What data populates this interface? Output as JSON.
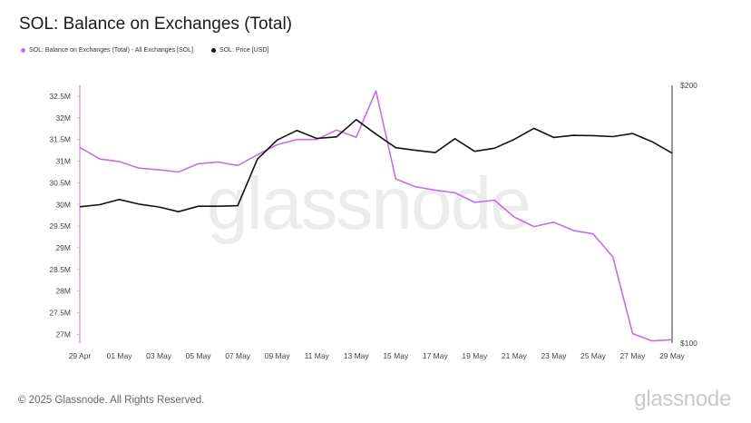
{
  "header": {
    "title": "SOL: Balance on Exchanges (Total)"
  },
  "footer": {
    "copyright": "© 2025 Glassnode. All Rights Reserved.",
    "brand": "glassnode",
    "watermark": "glassnode"
  },
  "colors": {
    "balance": "#c46fe9",
    "price": "#111111",
    "grid_axis": "#e0e0e0"
  },
  "chart_data": {
    "type": "line",
    "title": "SOL: Balance on Exchanges (Total)",
    "x_tick_labels": [
      "29 Apr",
      "01 May",
      "03 May",
      "05 May",
      "07 May",
      "09 May",
      "11 May",
      "13 May",
      "15 May",
      "17 May",
      "19 May",
      "21 May",
      "23 May",
      "25 May",
      "27 May",
      "29 May"
    ],
    "x": [
      "29 Apr",
      "30 Apr",
      "01 May",
      "02 May",
      "03 May",
      "04 May",
      "05 May",
      "06 May",
      "07 May",
      "08 May",
      "09 May",
      "10 May",
      "11 May",
      "12 May",
      "13 May",
      "14 May",
      "15 May",
      "16 May",
      "17 May",
      "18 May",
      "19 May",
      "20 May",
      "21 May",
      "22 May",
      "23 May",
      "24 May",
      "25 May",
      "26 May",
      "27 May",
      "28 May",
      "29 May"
    ],
    "y_left": {
      "ticks": [
        "27M",
        "27.5M",
        "28M",
        "28.5M",
        "29M",
        "29.5M",
        "30M",
        "30.5M",
        "31M",
        "31.5M",
        "32M",
        "32.5M"
      ],
      "range": [
        26.8,
        32.75
      ]
    },
    "y_right": {
      "ticks": [
        "$100",
        "$200"
      ],
      "range": [
        100,
        200
      ]
    },
    "grid": false,
    "legend_position": "top-left",
    "series": [
      {
        "name": "SOL: Balance on Exchanges (Total) - All Exchanges [SOL]",
        "axis": "left",
        "color": "#c46fe9",
        "values": [
          31.32,
          31.05,
          30.99,
          30.84,
          30.8,
          30.75,
          30.94,
          30.98,
          30.9,
          31.15,
          31.38,
          31.5,
          31.5,
          31.72,
          31.55,
          32.62,
          30.59,
          30.41,
          30.33,
          30.27,
          30.05,
          30.1,
          29.71,
          29.49,
          29.59,
          29.4,
          29.32,
          28.79,
          27.02,
          26.85,
          26.88
        ]
      },
      {
        "name": "SOL: Price [USD]",
        "axis": "right",
        "color": "#111111",
        "values": [
          152.9,
          153.7,
          155.7,
          153.9,
          152.8,
          151.0,
          153.1,
          153.1,
          153.3,
          171.4,
          178.8,
          182.5,
          179.4,
          180.0,
          186.7,
          181.1,
          175.8,
          174.8,
          173.9,
          179.3,
          174.4,
          175.6,
          179.0,
          183.3,
          179.8,
          180.6,
          180.5,
          180.1,
          181.3,
          178.1,
          173.7
        ]
      }
    ]
  }
}
